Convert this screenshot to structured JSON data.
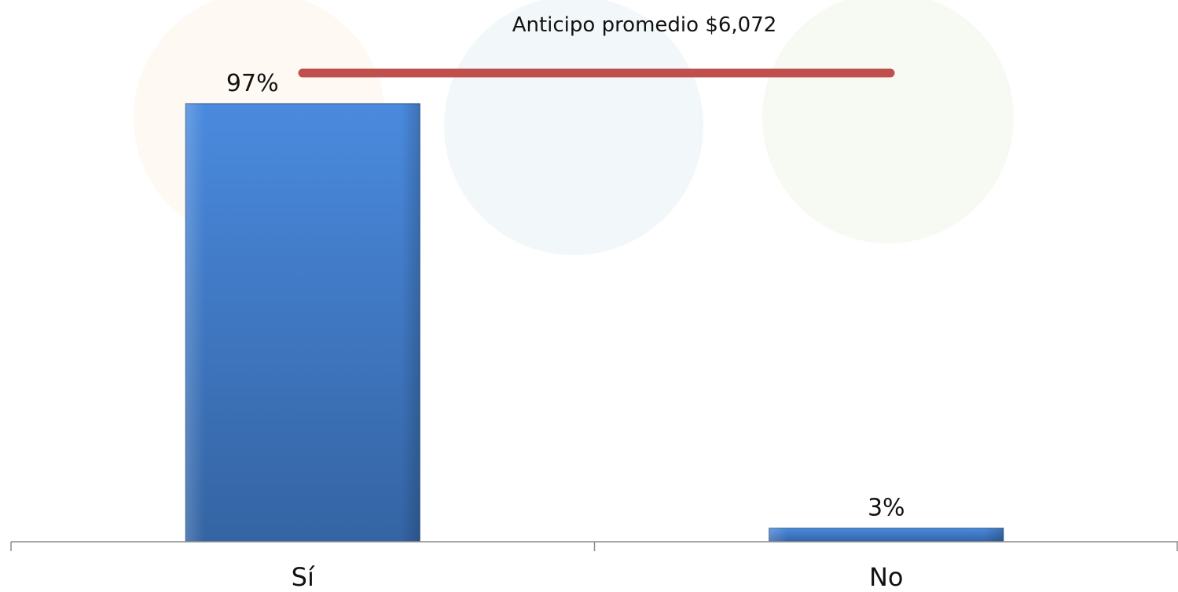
{
  "chart_data": {
    "type": "bar",
    "categories": [
      "Sí",
      "No"
    ],
    "values": [
      97,
      3
    ],
    "data_labels": [
      "97%",
      "3%"
    ],
    "ylim": [
      0,
      100
    ],
    "grid": false,
    "legend": "none",
    "annotation": {
      "text": "Anticipo promedio $6,072",
      "line_color": "#c0504d"
    },
    "colors": {
      "bar_top": "#4a8ade",
      "bar_bottom": "#3464a3",
      "bar_edge": "#2a5588",
      "axis": "#8c8c8c"
    }
  }
}
